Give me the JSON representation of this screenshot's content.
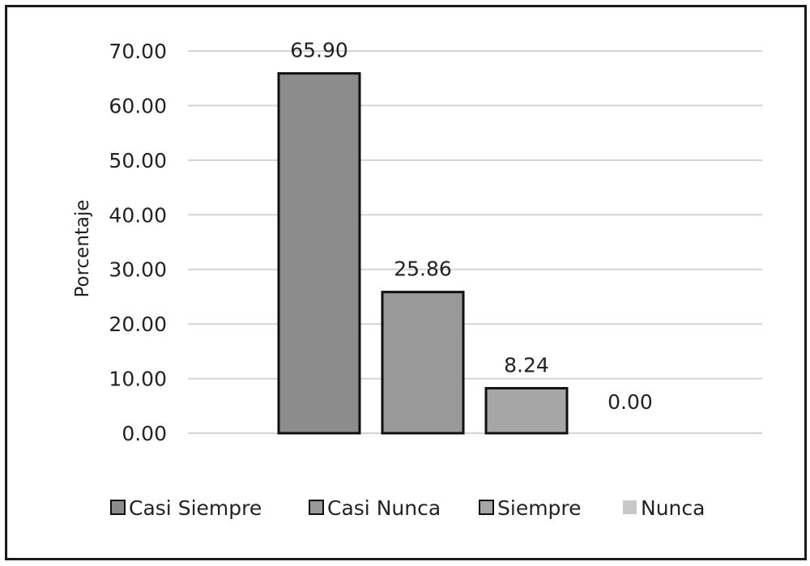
{
  "chart_data": {
    "type": "bar",
    "title": "",
    "xlabel": "",
    "ylabel": "Porcentaje",
    "ylim": [
      0,
      70
    ],
    "yticks": [
      0,
      10,
      20,
      30,
      40,
      50,
      60,
      70
    ],
    "ytick_labels": [
      "0.00",
      "10.00",
      "20.00",
      "30.00",
      "40.00",
      "50.00",
      "60.00",
      "70.00"
    ],
    "grid": true,
    "legend_position": "bottom",
    "series": [
      {
        "name": "Casi Siempre",
        "value": 65.9,
        "label": "65.90",
        "color": "#8c8c8c"
      },
      {
        "name": "Casi Nunca",
        "value": 25.86,
        "label": "25.86",
        "color": "#999999"
      },
      {
        "name": "Siempre",
        "value": 8.24,
        "label": "8.24",
        "color": "#a6a6a6"
      },
      {
        "name": "Nunca",
        "value": 0.0,
        "label": "0.00",
        "color": "#c8c8c8"
      }
    ]
  }
}
